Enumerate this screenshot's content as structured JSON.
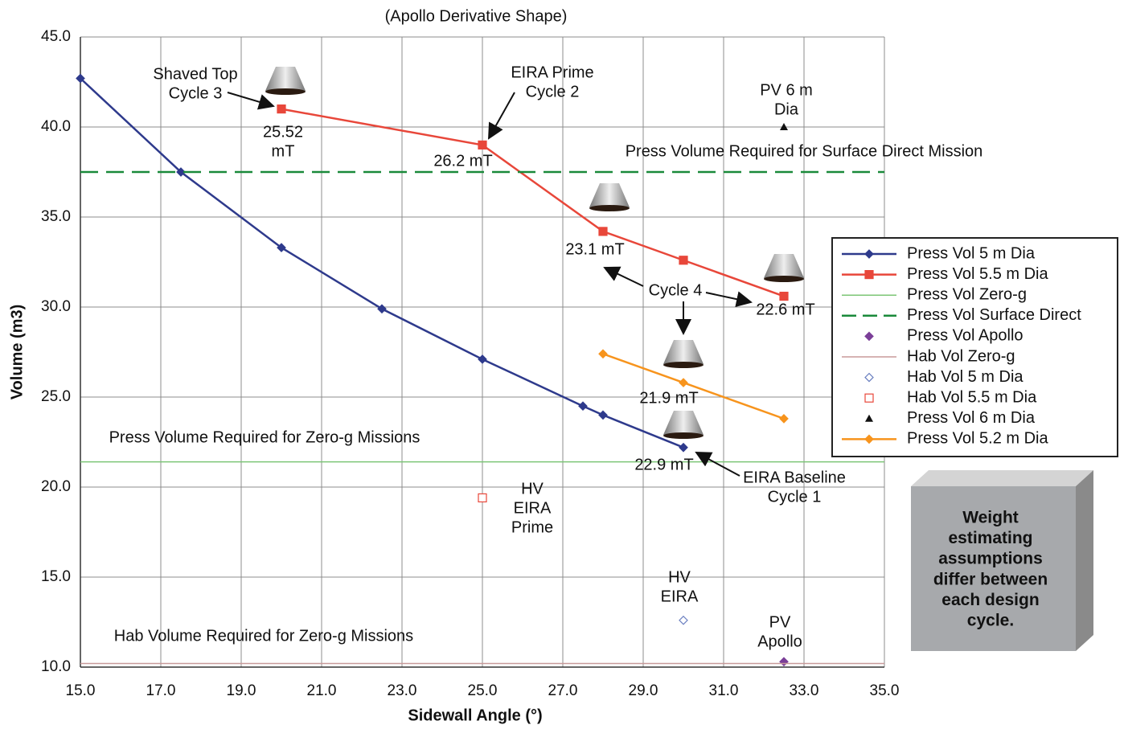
{
  "chart_data": {
    "type": "line",
    "title": "(Apollo Derivative Shape)",
    "x_label": "Sidewall Angle (°)",
    "y_label": "Volume (m3)",
    "xlim": [
      15,
      35
    ],
    "ylim": [
      10,
      45
    ],
    "xticks": [
      {
        "value": 15,
        "label": "15.0"
      },
      {
        "value": 17,
        "label": "17.0"
      },
      {
        "value": 19,
        "label": "19.0"
      },
      {
        "value": 21,
        "label": "21.0"
      },
      {
        "value": 23,
        "label": "23.0"
      },
      {
        "value": 25,
        "label": "25.0"
      },
      {
        "value": 27,
        "label": "27.0"
      },
      {
        "value": 29,
        "label": "29.0"
      },
      {
        "value": 31,
        "label": "31.0"
      },
      {
        "value": 33,
        "label": "33.0"
      },
      {
        "value": 35,
        "label": "35.0"
      }
    ],
    "yticks": [
      {
        "value": 10,
        "label": "10.0"
      },
      {
        "value": 15,
        "label": "15.0"
      },
      {
        "value": 20,
        "label": "20.0"
      },
      {
        "value": 25,
        "label": "25.0"
      },
      {
        "value": 30,
        "label": "30.0"
      },
      {
        "value": 35,
        "label": "35.0"
      },
      {
        "value": 40,
        "label": "40.0"
      },
      {
        "value": 45,
        "label": "45.0"
      }
    ],
    "grid": true,
    "legend": "right",
    "series": [
      {
        "name": "Press Vol 5 m Dia",
        "color": "#2e3a8c",
        "marker": "diamond",
        "line": true,
        "x": [
          15,
          17.5,
          20,
          22.5,
          25,
          27.5,
          28,
          30
        ],
        "values": [
          42.7,
          37.5,
          33.3,
          29.9,
          27.1,
          24.5,
          24.0,
          22.2
        ]
      },
      {
        "name": "Press Vol 5.5 m Dia",
        "color": "#e8473a",
        "marker": "square",
        "line": true,
        "x": [
          20,
          25,
          28,
          30,
          32.5
        ],
        "values": [
          41.0,
          39.0,
          34.2,
          32.6,
          30.6
        ]
      },
      {
        "name": "Press Vol Zero-g",
        "color": "#7cc576",
        "hline": 21.4
      },
      {
        "name": "Press Vol Surface Direct",
        "color": "#1a8a3a",
        "hline": 37.5,
        "dash": true
      },
      {
        "name": "Press Vol Apollo",
        "color": "#7b3f98",
        "marker": "diamond",
        "x": [
          32.5
        ],
        "values": [
          10.3
        ]
      },
      {
        "name": "Hab Vol Zero-g",
        "color": "#c89a9a",
        "hline": 10.2
      },
      {
        "name": "Hab Vol 5 m Dia",
        "color": "#6a7fc0",
        "marker": "open-diamond",
        "x": [
          30
        ],
        "values": [
          12.6
        ]
      },
      {
        "name": "Hab Vol 5.5 m Dia",
        "color": "#e8473a",
        "marker": "open-square",
        "x": [
          25
        ],
        "values": [
          19.4
        ]
      },
      {
        "name": "Press Vol 6 m Dia",
        "color": "#111111",
        "marker": "triangle",
        "x": [
          32.5
        ],
        "values": [
          40.0
        ]
      },
      {
        "name": "Press Vol 5.2 m Dia",
        "color": "#f7941d",
        "marker": "diamond",
        "line": true,
        "x": [
          28,
          30,
          32.5
        ],
        "values": [
          27.4,
          25.8,
          23.8
        ]
      }
    ],
    "annotations": [
      [
        "Shaved Top",
        "Cycle 3"
      ],
      [
        "25.52",
        "mT"
      ],
      [
        "EIRA Prime",
        "Cycle 2"
      ],
      [
        "26.2 mT"
      ],
      [
        "PV 6 m",
        "Dia"
      ],
      [
        "Press Volume Required for Surface Direct Mission"
      ],
      [
        "23.1 mT"
      ],
      [
        "Cycle 4"
      ],
      [
        "22.6 mT"
      ],
      [
        "21.9 mT"
      ],
      [
        "22.9 mT"
      ],
      [
        "EIRA Baseline",
        "Cycle 1"
      ],
      [
        "Press Volume Required for Zero-g Missions"
      ],
      [
        "HV",
        "EIRA",
        "Prime"
      ],
      [
        "HV",
        "EIRA"
      ],
      [
        "PV",
        "Apollo"
      ],
      [
        "Hab Volume Required for Zero-g Missions"
      ]
    ],
    "note": [
      "Weight",
      "estimating",
      "assumptions",
      "differ between",
      "each design",
      "cycle."
    ]
  }
}
